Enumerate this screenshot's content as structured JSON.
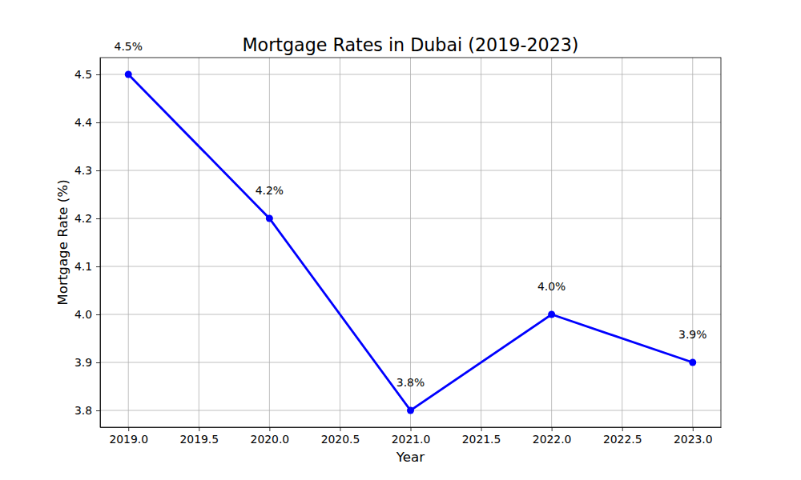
{
  "chart_data": {
    "type": "line",
    "title": "Mortgage Rates in Dubai (2019-2023)",
    "x_label": "Year",
    "y_label": "Mortgage Rate (%)",
    "x": [
      2019,
      2020,
      2021,
      2022,
      2023
    ],
    "values": [
      4.5,
      4.2,
      3.8,
      4.0,
      3.9
    ],
    "value_labels": [
      "4.5%",
      "4.2%",
      "3.8%",
      "4.0%",
      "3.9%"
    ],
    "data_labels": true,
    "color": "#0000ff",
    "marker": "circle",
    "line_style": "solid",
    "xlim": [
      2018.8,
      2023.2
    ],
    "xticks": [
      {
        "value": 2019,
        "label": "2019.0"
      },
      {
        "value": 2019.5,
        "label": "2019.5"
      },
      {
        "value": 2020,
        "label": "2020.0"
      },
      {
        "value": 2020.5,
        "label": "2020.5"
      },
      {
        "value": 2021,
        "label": "2021.0"
      },
      {
        "value": 2021.5,
        "label": "2021.5"
      },
      {
        "value": 2022,
        "label": "2022.0"
      },
      {
        "value": 2022.5,
        "label": "2022.5"
      },
      {
        "value": 2023,
        "label": "2023.0"
      }
    ],
    "ylim": [
      3.765,
      4.535
    ],
    "yticks": [
      3.8,
      3.9,
      {
        "value": 4,
        "label": "4.0"
      },
      4.1,
      4.2,
      4.3,
      4.4,
      4.5
    ],
    "grid": true
  }
}
